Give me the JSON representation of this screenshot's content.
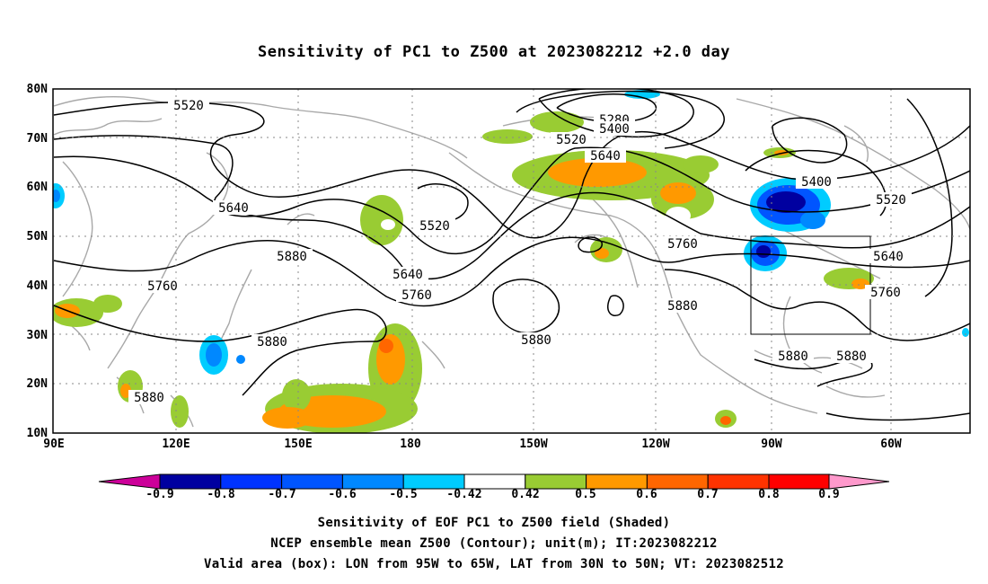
{
  "title": "Sensitivity of PC1 to Z500 at 2023082212 +2.0 day",
  "map": {
    "lat_labels": [
      "80N",
      "70N",
      "60N",
      "50N",
      "40N",
      "30N",
      "20N",
      "10N"
    ],
    "lon_labels": [
      "90E",
      "120E",
      "150E",
      "180",
      "150W",
      "120W",
      "90W",
      "60W"
    ],
    "contour_labels": [
      "5520",
      "5640",
      "5760",
      "5880",
      "5280",
      "5400",
      "5520",
      "5640",
      "5520",
      "5640",
      "5760",
      "5880",
      "5880",
      "5880",
      "5760",
      "5880",
      "5400",
      "5520",
      "5640",
      "5760",
      "5880",
      "5880"
    ],
    "box_region": {
      "lon_range": [
        "95W",
        "65W"
      ],
      "lat_range": [
        "30N",
        "50N"
      ]
    }
  },
  "colorbar": {
    "labels": [
      "-0.9",
      "-0.8",
      "-0.7",
      "-0.6",
      "-0.5",
      "-0.42",
      "0.42",
      "0.5",
      "0.6",
      "0.7",
      "0.8",
      "0.9"
    ],
    "colors": [
      "#0000a0",
      "#0033ff",
      "#0055ff",
      "#0088ff",
      "#00ccff",
      "#ffffff",
      "#99cc33",
      "#ff9900",
      "#ff6600",
      "#ff3300",
      "#ff0000"
    ],
    "end_low_color": "#cc0099",
    "end_high_color": "#ff99cc"
  },
  "captions": [
    "Sensitivity of EOF PC1 to Z500 field (Shaded)",
    "NCEP ensemble mean Z500 (Contour); unit(m); IT:2023082212",
    "Valid area (box): LON from 95W to 65W, LAT from 30N to 50N; VT: 2023082512"
  ]
}
